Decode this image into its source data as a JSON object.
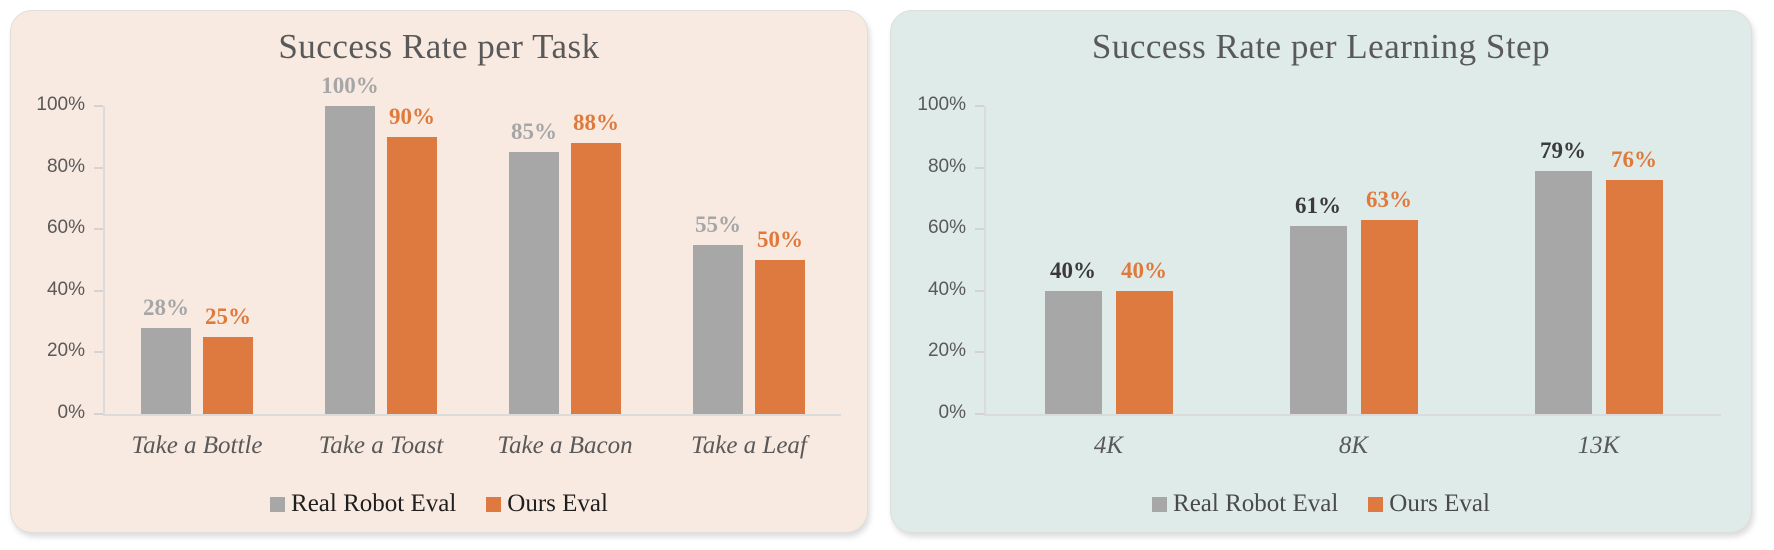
{
  "chart_data": [
    {
      "type": "bar",
      "title": "Success Rate per Task",
      "categories": [
        "Take a Bottle",
        "Take a Toast",
        "Take a Bacon",
        "Take a Leaf"
      ],
      "series": [
        {
          "name": "Real Robot Eval",
          "color": "#A7A7A7",
          "label_color": "#A6A6A6",
          "values": [
            28,
            100,
            85,
            55
          ],
          "labels": [
            "28%",
            "100%",
            "85%",
            "55%"
          ]
        },
        {
          "name": "Ours Eval",
          "color": "#DE7A40",
          "label_color": "#E07A3C",
          "values": [
            25,
            90,
            88,
            50
          ],
          "labels": [
            "25%",
            "90%",
            "88%",
            "50%"
          ]
        }
      ],
      "xlabel": "",
      "ylabel": "",
      "ylim": [
        0,
        100
      ],
      "yticks": [
        "0%",
        "20%",
        "40%",
        "60%",
        "80%",
        "100%"
      ],
      "grid": false,
      "legend_position": "bottom",
      "background": "#F9EAE1",
      "legend_text_color": "#1F1F1F",
      "axis_text_color": "#595959"
    },
    {
      "type": "bar",
      "title": "Success Rate per Learning Step",
      "categories": [
        "4K",
        "8K",
        "13K"
      ],
      "series": [
        {
          "name": "Real Robot Eval",
          "color": "#A7A7A7",
          "label_color": "#3A3A3A",
          "values": [
            40,
            61,
            79
          ],
          "labels": [
            "40%",
            "61%",
            "79%"
          ]
        },
        {
          "name": "Ours Eval",
          "color": "#DE7A40",
          "label_color": "#E07A3C",
          "values": [
            40,
            63,
            76
          ],
          "labels": [
            "40%",
            "63%",
            "76%"
          ]
        }
      ],
      "xlabel": "",
      "ylabel": "",
      "ylim": [
        0,
        100
      ],
      "yticks": [
        "0%",
        "20%",
        "40%",
        "60%",
        "80%",
        "100%"
      ],
      "grid": false,
      "legend_position": "bottom",
      "background": "#DFEBE8",
      "legend_text_color": "#4A4A4A",
      "axis_text_color": "#595959"
    }
  ]
}
